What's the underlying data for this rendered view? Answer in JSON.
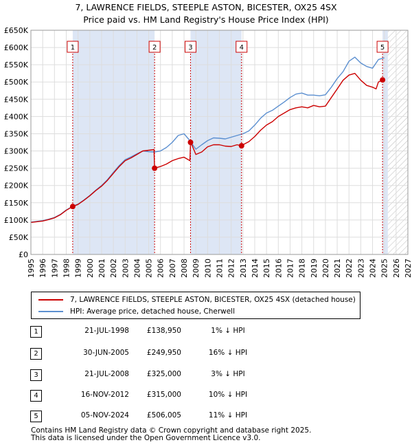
{
  "title_line1": "7, LAWRENCE FIELDS, STEEPLE ASTON, BICESTER, OX25 4SX",
  "title_line2": "Price paid vs. HM Land Registry's House Price Index (HPI)",
  "colors": {
    "red": "#cc0000",
    "blue": "#5b8fd0",
    "shade": "#dde6f5",
    "grid": "#dddddd"
  },
  "chart_data": {
    "type": "line",
    "xlim": [
      1995,
      2027
    ],
    "ylim": [
      0,
      650000
    ],
    "yticks": [
      0,
      50000,
      100000,
      150000,
      200000,
      250000,
      300000,
      350000,
      400000,
      450000,
      500000,
      550000,
      600000,
      650000
    ],
    "ytick_labels": [
      "£0",
      "£50K",
      "£100K",
      "£150K",
      "£200K",
      "£250K",
      "£300K",
      "£350K",
      "£400K",
      "£450K",
      "£500K",
      "£550K",
      "£600K",
      "£650K"
    ],
    "xticks": [
      1995,
      1996,
      1997,
      1998,
      1999,
      2000,
      2001,
      2002,
      2003,
      2004,
      2005,
      2006,
      2007,
      2008,
      2009,
      2010,
      2011,
      2012,
      2013,
      2014,
      2015,
      2016,
      2017,
      2018,
      2019,
      2020,
      2021,
      2022,
      2023,
      2024,
      2025,
      2026,
      2027
    ],
    "shaded_periods": [
      [
        1998.55,
        2005.5
      ],
      [
        2008.55,
        2012.88
      ],
      [
        2024.85,
        2025.3
      ]
    ],
    "future_hatch_from": 2025.3,
    "series": [
      {
        "name": "7, LAWRENCE FIELDS, STEEPLE ASTON, BICESTER, OX25 4SX (detached house)",
        "color": "#cc0000",
        "x": [
          1995,
          1995.5,
          1996,
          1996.5,
          1997,
          1997.5,
          1998,
          1998.55,
          1999,
          1999.5,
          2000,
          2000.5,
          2001,
          2001.5,
          2002,
          2002.5,
          2003,
          2003.5,
          2004,
          2004.5,
          2005,
          2005.45,
          2005.5,
          2006,
          2006.5,
          2007,
          2007.5,
          2008,
          2008.5,
          2008.55,
          2008.7,
          2009,
          2009.5,
          2010,
          2010.5,
          2011,
          2011.5,
          2012,
          2012.5,
          2012.88,
          2013,
          2013.5,
          2014,
          2014.5,
          2015,
          2015.5,
          2016,
          2016.5,
          2017,
          2017.5,
          2018,
          2018.5,
          2019,
          2019.5,
          2020,
          2020.5,
          2021,
          2021.5,
          2022,
          2022.5,
          2023,
          2023.5,
          2024,
          2024.3,
          2024.5,
          2024.85,
          2025.0
        ],
        "values": [
          93000,
          95000,
          97000,
          101000,
          106000,
          115000,
          128000,
          138950,
          145000,
          157000,
          170000,
          185000,
          198000,
          215000,
          235000,
          255000,
          272000,
          280000,
          290000,
          300000,
          302000,
          304000,
          249950,
          255000,
          262000,
          272000,
          278000,
          282000,
          272000,
          325000,
          315000,
          290000,
          297000,
          312000,
          318000,
          318000,
          314000,
          313000,
          318000,
          315000,
          318000,
          327000,
          342000,
          360000,
          375000,
          385000,
          400000,
          410000,
          420000,
          425000,
          428000,
          425000,
          432000,
          428000,
          430000,
          455000,
          480000,
          505000,
          520000,
          525000,
          505000,
          490000,
          485000,
          480000,
          500000,
          506005,
          508000
        ]
      },
      {
        "name": "HPI: Average price, detached house, Cherwell",
        "color": "#5b8fd0",
        "x": [
          1995,
          1995.5,
          1996,
          1996.5,
          1997,
          1997.5,
          1998,
          1998.55,
          1999,
          1999.5,
          2000,
          2000.5,
          2001,
          2001.5,
          2002,
          2002.5,
          2003,
          2003.5,
          2004,
          2004.5,
          2005,
          2005.5,
          2006,
          2006.5,
          2007,
          2007.5,
          2008,
          2008.5,
          2009,
          2009.5,
          2010,
          2010.5,
          2011,
          2011.5,
          2012,
          2012.5,
          2013,
          2013.5,
          2014,
          2014.5,
          2015,
          2015.5,
          2016,
          2016.5,
          2017,
          2017.5,
          2018,
          2018.5,
          2019,
          2019.5,
          2020,
          2020.5,
          2021,
          2021.5,
          2022,
          2022.5,
          2023,
          2023.5,
          2024,
          2024.5,
          2025.0
        ],
        "values": [
          94000,
          96000,
          98000,
          102000,
          107000,
          116000,
          129000,
          140000,
          146000,
          158000,
          171000,
          186000,
          200000,
          217000,
          238000,
          258000,
          275000,
          283000,
          292000,
          300000,
          298000,
          297000,
          300000,
          310000,
          325000,
          345000,
          350000,
          330000,
          305000,
          318000,
          330000,
          338000,
          337000,
          335000,
          340000,
          345000,
          350000,
          358000,
          375000,
          395000,
          410000,
          418000,
          430000,
          442000,
          455000,
          465000,
          468000,
          462000,
          462000,
          460000,
          463000,
          485000,
          510000,
          530000,
          560000,
          572000,
          555000,
          545000,
          540000,
          565000,
          570000
        ]
      }
    ],
    "sales": [
      {
        "n": "1",
        "x": 1998.55,
        "y": 138950
      },
      {
        "n": "2",
        "x": 2005.5,
        "y": 249950
      },
      {
        "n": "3",
        "x": 2008.55,
        "y": 325000
      },
      {
        "n": "4",
        "x": 2012.88,
        "y": 315000
      },
      {
        "n": "5",
        "x": 2024.85,
        "y": 506005
      }
    ]
  },
  "legend": {
    "red_label": "7, LAWRENCE FIELDS, STEEPLE ASTON, BICESTER, OX25 4SX (detached house)",
    "blue_label": "HPI: Average price, detached house, Cherwell"
  },
  "transactions": [
    {
      "n": "1",
      "date": "21-JUL-1998",
      "price": "£138,950",
      "hpi": "1% ↓ HPI"
    },
    {
      "n": "2",
      "date": "30-JUN-2005",
      "price": "£249,950",
      "hpi": "16% ↓ HPI"
    },
    {
      "n": "3",
      "date": "21-JUL-2008",
      "price": "£325,000",
      "hpi": "3% ↓ HPI"
    },
    {
      "n": "4",
      "date": "16-NOV-2012",
      "price": "£315,000",
      "hpi": "10% ↓ HPI"
    },
    {
      "n": "5",
      "date": "05-NOV-2024",
      "price": "£506,005",
      "hpi": "11% ↓ HPI"
    }
  ],
  "footer_line1": "Contains HM Land Registry data © Crown copyright and database right 2025.",
  "footer_line2": "This data is licensed under the Open Government Licence v3.0."
}
